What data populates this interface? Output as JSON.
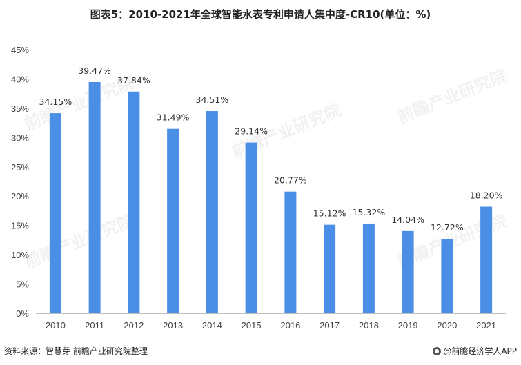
{
  "title": "图表5：2010-2021年全球智能水表专利申请人集中度-CR10(单位：%)",
  "footer": {
    "source": "资料来源：智慧芽 前瞻产业研究院整理",
    "app": "@前瞻经济学人APP"
  },
  "watermark": "前瞻产业研究院",
  "colors": {
    "bar": "#4a8ee6",
    "axis": "#bfbfbf"
  },
  "chart_data": {
    "type": "bar",
    "title": "图表5：2010-2021年全球智能水表专利申请人集中度-CR10(单位：%)",
    "xlabel": "",
    "ylabel": "",
    "ylim": [
      0,
      45
    ],
    "yticks": [
      "0%",
      "5%",
      "10%",
      "15%",
      "20%",
      "25%",
      "30%",
      "35%",
      "40%",
      "45%"
    ],
    "categories": [
      "2010",
      "2011",
      "2012",
      "2013",
      "2014",
      "2015",
      "2016",
      "2017",
      "2018",
      "2019",
      "2020",
      "2021"
    ],
    "values": [
      34.15,
      39.47,
      37.84,
      31.49,
      34.51,
      29.14,
      20.77,
      15.12,
      15.32,
      14.04,
      12.72,
      18.2
    ],
    "labels": [
      "34.15%",
      "39.47%",
      "37.84%",
      "31.49%",
      "34.51%",
      "29.14%",
      "20.77%",
      "15.12%",
      "15.32%",
      "14.04%",
      "12.72%",
      "18.20%"
    ],
    "grid": false,
    "legend": "none"
  }
}
